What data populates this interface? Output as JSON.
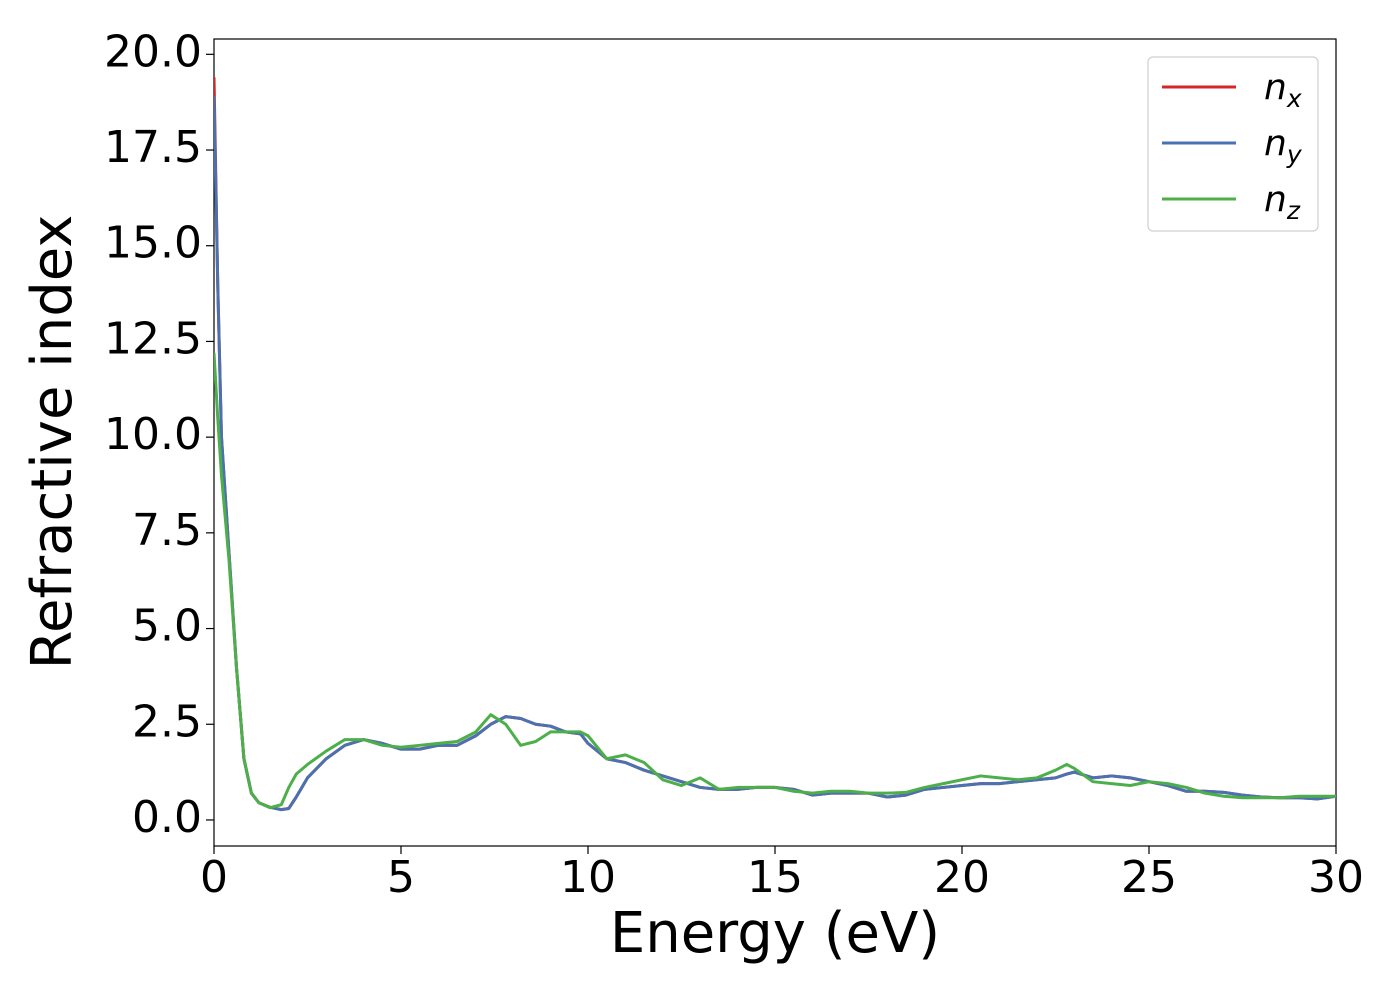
{
  "chart_data": {
    "type": "line",
    "xlabel": "Energy (eV)",
    "ylabel": "Refractive index",
    "xlim": [
      0,
      30
    ],
    "ylim": [
      -0.68,
      20.4
    ],
    "xticks": [
      0,
      5,
      10,
      15,
      20,
      25,
      30
    ],
    "yticks": [
      {
        "value": 0,
        "label": "0.0"
      },
      2.5,
      {
        "value": 5,
        "label": "5.0"
      },
      7.5,
      {
        "value": 10,
        "label": "10.0"
      },
      12.5,
      {
        "value": 15,
        "label": "15.0"
      },
      17.5,
      {
        "value": 20,
        "label": "20.0"
      }
    ],
    "legend": "upper right",
    "grid": false,
    "x": [
      0,
      0.1,
      0.2,
      0.4,
      0.6,
      0.8,
      1.0,
      1.2,
      1.5,
      1.8,
      2.0,
      2.2,
      2.5,
      3.0,
      3.5,
      4.0,
      4.5,
      5.0,
      5.5,
      6.0,
      6.5,
      7.0,
      7.4,
      7.8,
      8.2,
      8.6,
      9.0,
      9.4,
      9.8,
      10.0,
      10.5,
      11.0,
      11.5,
      12.0,
      12.5,
      13.0,
      13.5,
      14.0,
      14.5,
      15.0,
      15.5,
      16.0,
      16.5,
      17.0,
      17.5,
      18.0,
      18.5,
      19.0,
      19.5,
      20.0,
      20.5,
      21.0,
      21.5,
      22.0,
      22.5,
      22.8,
      23.0,
      23.5,
      24.0,
      24.5,
      25.0,
      25.5,
      26.0,
      26.5,
      27.0,
      27.5,
      28.0,
      28.5,
      29.0,
      29.5,
      30.0
    ],
    "series": [
      {
        "name": "n_x",
        "color": "#d62728",
        "values": [
          19.4,
          14,
          10,
          7,
          4,
          1.6,
          0.7,
          0.45,
          0.33,
          0.27,
          0.3,
          0.6,
          1.1,
          1.6,
          1.95,
          2.1,
          2.0,
          1.85,
          1.85,
          1.95,
          1.95,
          2.2,
          2.5,
          2.7,
          2.65,
          2.5,
          2.45,
          2.3,
          2.25,
          2.0,
          1.6,
          1.5,
          1.3,
          1.15,
          1.0,
          0.85,
          0.8,
          0.8,
          0.85,
          0.85,
          0.8,
          0.65,
          0.7,
          0.7,
          0.7,
          0.6,
          0.65,
          0.8,
          0.85,
          0.9,
          0.95,
          0.95,
          1.0,
          1.05,
          1.1,
          1.2,
          1.25,
          1.1,
          1.15,
          1.1,
          1.0,
          0.9,
          0.75,
          0.75,
          0.72,
          0.65,
          0.6,
          0.58,
          0.58,
          0.55,
          0.62
        ]
      },
      {
        "name": "n_y",
        "color": "#4a72b0",
        "values": [
          18.9,
          14,
          10,
          7,
          4,
          1.6,
          0.7,
          0.45,
          0.33,
          0.27,
          0.3,
          0.6,
          1.1,
          1.6,
          1.95,
          2.1,
          2.0,
          1.85,
          1.85,
          1.95,
          1.95,
          2.2,
          2.5,
          2.7,
          2.65,
          2.5,
          2.45,
          2.3,
          2.25,
          2.0,
          1.6,
          1.5,
          1.3,
          1.15,
          1.0,
          0.85,
          0.8,
          0.8,
          0.85,
          0.85,
          0.8,
          0.65,
          0.7,
          0.7,
          0.7,
          0.6,
          0.65,
          0.8,
          0.85,
          0.9,
          0.95,
          0.95,
          1.0,
          1.05,
          1.1,
          1.2,
          1.25,
          1.1,
          1.15,
          1.1,
          1.0,
          0.9,
          0.75,
          0.75,
          0.72,
          0.65,
          0.6,
          0.58,
          0.58,
          0.55,
          0.62
        ]
      },
      {
        "name": "n_z",
        "color": "#4daf4a",
        "values": [
          12.2,
          10.5,
          9,
          6.8,
          4,
          1.6,
          0.7,
          0.45,
          0.32,
          0.4,
          0.85,
          1.2,
          1.45,
          1.8,
          2.1,
          2.1,
          1.95,
          1.9,
          1.95,
          2.0,
          2.05,
          2.3,
          2.75,
          2.5,
          1.95,
          2.05,
          2.3,
          2.3,
          2.3,
          2.2,
          1.6,
          1.7,
          1.5,
          1.05,
          0.9,
          1.1,
          0.8,
          0.85,
          0.85,
          0.85,
          0.75,
          0.7,
          0.75,
          0.75,
          0.7,
          0.7,
          0.72,
          0.85,
          0.95,
          1.05,
          1.15,
          1.1,
          1.05,
          1.1,
          1.3,
          1.45,
          1.35,
          1.0,
          0.95,
          0.9,
          1.0,
          0.95,
          0.85,
          0.7,
          0.62,
          0.58,
          0.58,
          0.58,
          0.62,
          0.62,
          0.62
        ]
      }
    ]
  }
}
